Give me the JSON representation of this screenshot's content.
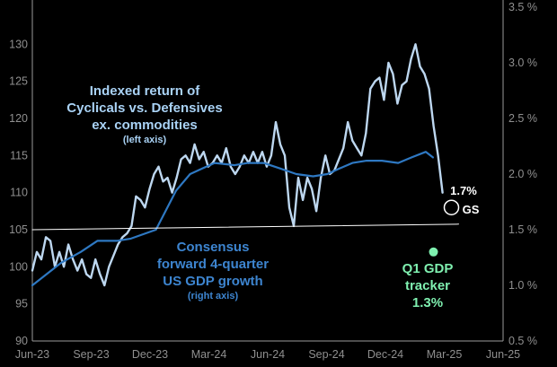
{
  "colors": {
    "background": "#000000",
    "cyclicals_line": "#bdd7f0",
    "consensus_line": "#2e78c2",
    "trend_line": "#ffffff",
    "gs_marker": "#ffffff",
    "gdp_tracker": "#7ff0b0",
    "annotation_light": "#a9d2f5",
    "annotation_blue": "#3d85d0",
    "tick_text": "#8f8f8f"
  },
  "annotations": {
    "cyclicals": {
      "line1": "Indexed return of",
      "line2": "Cyclicals vs. Defensives",
      "line3": "ex. commodities",
      "sub": "(left axis)"
    },
    "consensus": {
      "line1": "Consensus",
      "line2": "forward 4-quarter",
      "line3": "US GDP growth",
      "sub": "(right axis)"
    },
    "gs": {
      "value": "1.7%",
      "label": "GS"
    },
    "tracker": {
      "line1": "Q1 GDP",
      "line2": "tracker",
      "line3": "1.3%"
    }
  },
  "chart_data": {
    "type": "line",
    "x_ticks": [
      "Jun-23",
      "Sep-23",
      "Dec-23",
      "Mar-24",
      "Jun-24",
      "Sep-24",
      "Dec-24",
      "Mar-25",
      "Jun-25"
    ],
    "left_axis": {
      "ylim": [
        90,
        135
      ],
      "ticks": [
        "90",
        "95",
        "100",
        "105",
        "110",
        "115",
        "120",
        "125",
        "130"
      ]
    },
    "right_axis": {
      "ylim": [
        0.5,
        3.5
      ],
      "ticks": [
        "0.5 %",
        "1.0 %",
        "1.5 %",
        "2.0 %",
        "2.5 %",
        "3.0 %",
        "3.5 %"
      ]
    },
    "grid": false,
    "series": [
      {
        "name": "Cyclicals vs. Defensives ex. commodities",
        "axis": "left",
        "x": [
          "2023-06-01",
          "2023-06-08",
          "2023-06-15",
          "2023-06-22",
          "2023-06-29",
          "2023-07-06",
          "2023-07-13",
          "2023-07-20",
          "2023-07-27",
          "2023-08-03",
          "2023-08-10",
          "2023-08-17",
          "2023-08-24",
          "2023-08-31",
          "2023-09-07",
          "2023-09-14",
          "2023-09-21",
          "2023-09-28",
          "2023-10-05",
          "2023-10-12",
          "2023-10-19",
          "2023-10-26",
          "2023-11-02",
          "2023-11-09",
          "2023-11-16",
          "2023-11-23",
          "2023-11-30",
          "2023-12-07",
          "2023-12-14",
          "2023-12-21",
          "2023-12-28",
          "2024-01-04",
          "2024-01-11",
          "2024-01-18",
          "2024-01-25",
          "2024-02-01",
          "2024-02-08",
          "2024-02-15",
          "2024-02-22",
          "2024-02-29",
          "2024-03-07",
          "2024-03-14",
          "2024-03-21",
          "2024-03-28",
          "2024-04-04",
          "2024-04-11",
          "2024-04-18",
          "2024-04-25",
          "2024-05-02",
          "2024-05-09",
          "2024-05-16",
          "2024-05-23",
          "2024-05-30",
          "2024-06-06",
          "2024-06-13",
          "2024-06-20",
          "2024-06-27",
          "2024-07-04",
          "2024-07-11",
          "2024-07-18",
          "2024-07-25",
          "2024-08-01",
          "2024-08-08",
          "2024-08-15",
          "2024-08-22",
          "2024-08-29",
          "2024-09-05",
          "2024-09-12",
          "2024-09-19",
          "2024-09-26",
          "2024-10-03",
          "2024-10-10",
          "2024-10-17",
          "2024-10-24",
          "2024-10-31",
          "2024-11-07",
          "2024-11-14",
          "2024-11-21",
          "2024-11-28",
          "2024-12-05",
          "2024-12-12",
          "2024-12-19",
          "2024-12-26",
          "2025-01-02",
          "2025-01-09",
          "2025-01-16",
          "2025-01-23",
          "2025-01-30",
          "2025-02-06",
          "2025-02-13",
          "2025-02-20",
          "2025-02-27"
        ],
        "values": [
          99.5,
          102,
          101,
          104,
          103.5,
          100,
          102,
          100,
          103,
          101,
          99.5,
          101,
          99,
          98.5,
          101,
          99,
          97.5,
          100,
          101.5,
          103,
          104,
          104.5,
          105.5,
          109.5,
          109,
          108,
          110.5,
          112.5,
          113.5,
          111.5,
          112,
          110,
          112,
          114.5,
          115,
          114,
          116.5,
          114.5,
          115.5,
          113.5,
          114,
          115,
          114,
          116,
          113.5,
          112.5,
          113.5,
          115,
          114,
          115.5,
          114,
          115.5,
          113.5,
          115,
          119.5,
          116.5,
          115,
          108,
          105.5,
          112,
          109,
          112,
          110.5,
          107.5,
          112,
          115,
          112.5,
          113,
          114.5,
          116,
          119.5,
          117,
          116,
          115,
          118,
          124,
          125,
          125.5,
          122.5,
          127.5,
          126,
          122,
          124.5,
          125,
          128,
          130,
          127,
          126,
          124,
          119,
          115,
          110
        ]
      },
      {
        "name": "Consensus forward 4-quarter US GDP growth",
        "axis": "right",
        "x": [
          "2023-06-01",
          "2023-07-15",
          "2023-08-15",
          "2023-09-10",
          "2023-10-10",
          "2023-11-01",
          "2023-12-10",
          "2024-01-10",
          "2024-02-01",
          "2024-02-20",
          "2024-03-10",
          "2024-04-10",
          "2024-05-01",
          "2024-05-25",
          "2024-06-20",
          "2024-07-15",
          "2024-08-10",
          "2024-09-01",
          "2024-09-20",
          "2024-10-10",
          "2024-11-01",
          "2024-11-25",
          "2024-12-20",
          "2025-01-10",
          "2025-02-01",
          "2025-02-12"
        ],
        "values": [
          1.0,
          1.2,
          1.3,
          1.4,
          1.4,
          1.42,
          1.5,
          1.85,
          2.0,
          2.05,
          2.1,
          2.08,
          2.1,
          2.1,
          2.05,
          2.0,
          1.98,
          2.0,
          2.05,
          2.1,
          2.12,
          2.12,
          2.1,
          2.15,
          2.2,
          2.15
        ]
      },
      {
        "name": "Trend",
        "axis": "right",
        "x": [
          "2023-06-01",
          "2025-03-24"
        ],
        "values": [
          1.5,
          1.55
        ]
      }
    ],
    "points": [
      {
        "label": "GS",
        "value_label": "1.7%",
        "x": "2025-03-10",
        "y": 1.7,
        "axis": "right",
        "marker": "open-circle"
      },
      {
        "label": "Q1 GDP tracker",
        "value_label": "1.3%",
        "x": "2025-03-10",
        "y": 1.3,
        "axis": "right",
        "marker": "filled-circle"
      }
    ]
  }
}
